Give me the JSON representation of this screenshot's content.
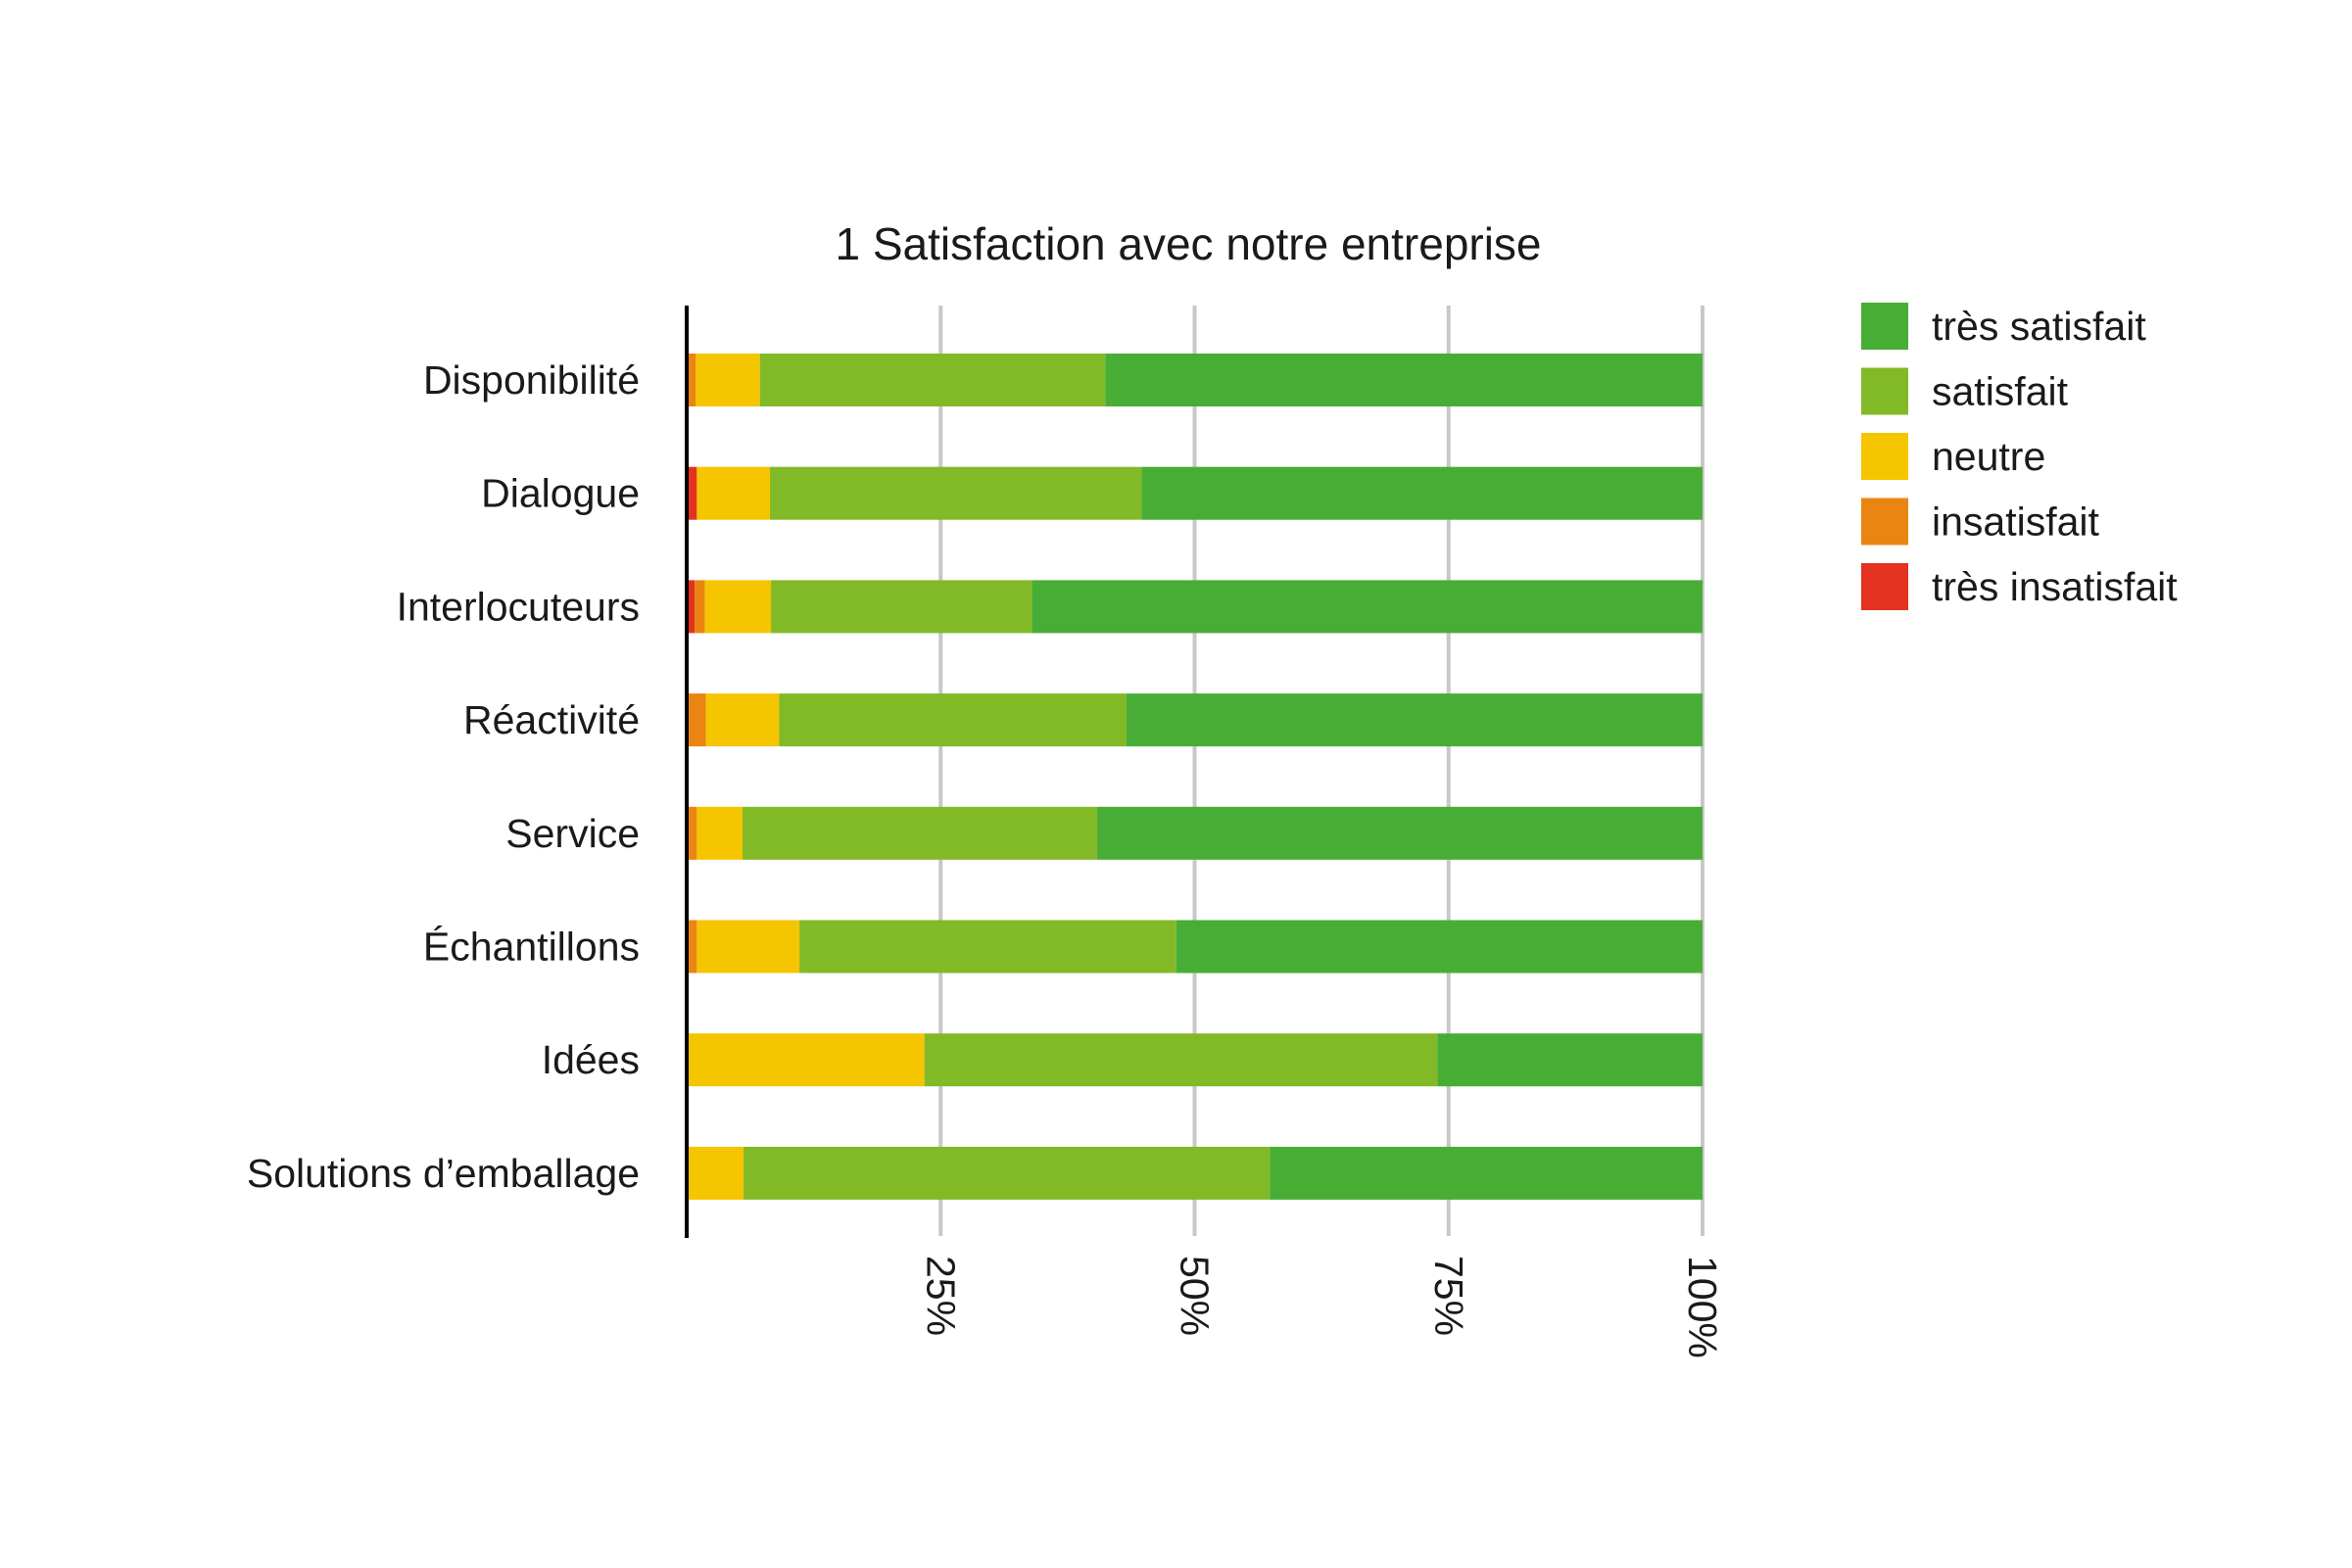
{
  "chart_data": {
    "type": "bar",
    "orientation": "horizontal",
    "stacked": true,
    "title": "1 Satisfaction avec notre entreprise",
    "xlabel": "",
    "ylabel": "",
    "xlim": [
      0,
      100
    ],
    "x_ticks": [
      {
        "value": 25,
        "label": "25%"
      },
      {
        "value": 50,
        "label": "50%"
      },
      {
        "value": 75,
        "label": "75%"
      },
      {
        "value": 100,
        "label": "100%"
      }
    ],
    "grid": "vertical",
    "legend_position": "right",
    "categories": [
      "Disponibilité",
      "Dialogue",
      "Interlocuteurs",
      "Réactivité",
      "Service",
      "Échantillons",
      "Idées",
      "Solutions d’emballage"
    ],
    "series": [
      {
        "name": "très insatisfait",
        "color": "#e3321f",
        "values": [
          0,
          1,
          0.8,
          0,
          0,
          0,
          0,
          0
        ]
      },
      {
        "name": "insatisfait",
        "color": "#ea8511",
        "values": [
          0.9,
          0,
          1,
          1.9,
          1,
          1,
          0,
          0
        ]
      },
      {
        "name": "neutre",
        "color": "#f5c500",
        "values": [
          6.3,
          7.2,
          6.5,
          7.2,
          4.5,
          10.1,
          23.4,
          5.6
        ]
      },
      {
        "name": "satisfait",
        "color": "#82b927",
        "values": [
          34,
          36.6,
          25.7,
          34.2,
          34.9,
          37.1,
          50.5,
          51.8
        ]
      },
      {
        "name": "très satisfait",
        "color": "#48ad35",
        "values": [
          58.8,
          55.2,
          66,
          56.7,
          59.6,
          51.8,
          26.1,
          42.6
        ]
      }
    ],
    "legend_order": [
      "très satisfait",
      "satisfait",
      "neutre",
      "insatisfait",
      "très insatisfait"
    ]
  }
}
